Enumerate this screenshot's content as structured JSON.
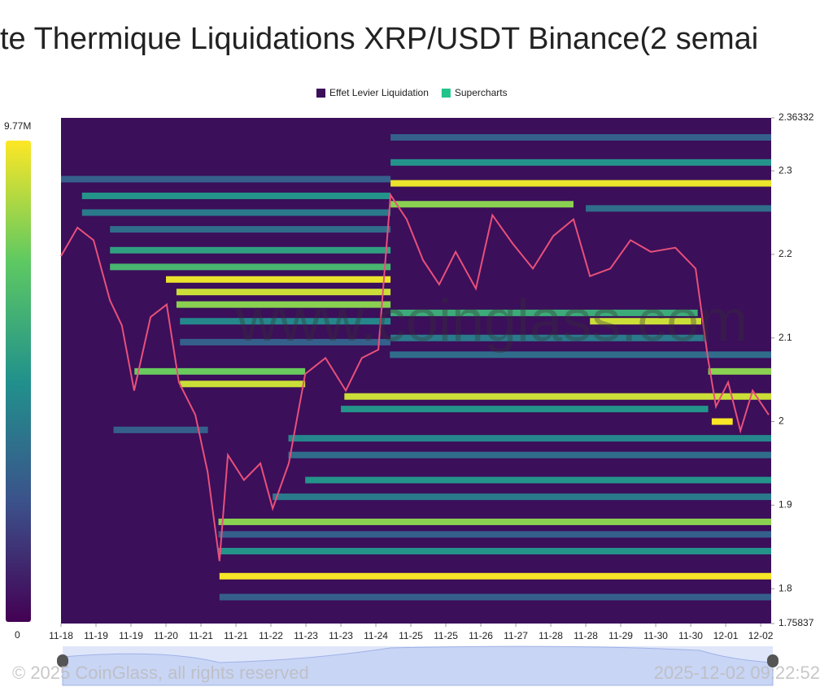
{
  "chart_data": {
    "type": "heatmap",
    "title": "te Thermique Liquidations XRP/USDT Binance(2 semai",
    "series": [
      {
        "name": "Effet Levier Liquidation",
        "color": "#3b0f5a"
      },
      {
        "name": "Supercharts",
        "color": "#21c48a"
      }
    ],
    "colorscale": {
      "min": 0,
      "max": {
        "value": 9770000,
        "label": "9.77M"
      },
      "low_color": "#440154",
      "high_color": "#fde725"
    },
    "ylim": [
      1.75837,
      2.36332
    ],
    "yticks": [
      1.75837,
      1.8,
      1.9,
      2,
      2.1,
      2.2,
      2.3,
      2.36332
    ],
    "xlim": [
      0,
      20.3
    ],
    "xticks": [
      {
        "value": 0,
        "label": "11-18"
      },
      {
        "value": 1,
        "label": "11-19"
      },
      {
        "value": 2,
        "label": "11-19"
      },
      {
        "value": 3,
        "label": "11-20"
      },
      {
        "value": 4,
        "label": "11-21"
      },
      {
        "value": 5,
        "label": "11-21"
      },
      {
        "value": 6,
        "label": "11-22"
      },
      {
        "value": 7,
        "label": "11-23"
      },
      {
        "value": 8,
        "label": "11-23"
      },
      {
        "value": 9,
        "label": "11-24"
      },
      {
        "value": 10,
        "label": "11-25"
      },
      {
        "value": 11,
        "label": "11-25"
      },
      {
        "value": 12,
        "label": "11-26"
      },
      {
        "value": 13,
        "label": "11-27"
      },
      {
        "value": 14,
        "label": "11-28"
      },
      {
        "value": 15,
        "label": "11-28"
      },
      {
        "value": 16,
        "label": "11-29"
      },
      {
        "value": 17,
        "label": "11-30"
      },
      {
        "value": 18,
        "label": "11-30"
      },
      {
        "value": 19,
        "label": "12-01"
      },
      {
        "value": 20,
        "label": "12-02"
      }
    ],
    "heatmap": [
      {
        "price": 2.29,
        "x0": 0,
        "x1": 9.42,
        "value": 3000000
      },
      {
        "price": 2.27,
        "x0": 0.6,
        "x1": 9.42,
        "value": 5000000
      },
      {
        "price": 2.25,
        "x0": 0.6,
        "x1": 9.42,
        "value": 4000000
      },
      {
        "price": 2.23,
        "x0": 1.4,
        "x1": 9.42,
        "value": 3500000
      },
      {
        "price": 2.205,
        "x0": 1.4,
        "x1": 9.42,
        "value": 5500000
      },
      {
        "price": 2.185,
        "x0": 1.4,
        "x1": 9.42,
        "value": 6500000
      },
      {
        "price": 2.17,
        "x0": 3,
        "x1": 9.42,
        "value": 9500000
      },
      {
        "price": 2.155,
        "x0": 3.3,
        "x1": 9.42,
        "value": 9000000
      },
      {
        "price": 2.14,
        "x0": 3.3,
        "x1": 9.42,
        "value": 8000000
      },
      {
        "price": 2.12,
        "x0": 3.4,
        "x1": 9.42,
        "value": 4500000
      },
      {
        "price": 2.095,
        "x0": 3.4,
        "x1": 9.42,
        "value": 3000000
      },
      {
        "price": 2.06,
        "x0": 2.1,
        "x1": 6.98,
        "value": 7500000
      },
      {
        "price": 2.045,
        "x0": 3.4,
        "x1": 6.98,
        "value": 9000000
      },
      {
        "price": 1.99,
        "x0": 1.5,
        "x1": 4.2,
        "value": 3000000
      },
      {
        "price": 2.34,
        "x0": 9.42,
        "x1": 20.3,
        "value": 3000000
      },
      {
        "price": 2.31,
        "x0": 9.42,
        "x1": 20.3,
        "value": 5000000
      },
      {
        "price": 2.285,
        "x0": 9.42,
        "x1": 20.3,
        "value": 9500000
      },
      {
        "price": 2.26,
        "x0": 9.42,
        "x1": 14.65,
        "value": 8000000
      },
      {
        "price": 2.255,
        "x0": 15,
        "x1": 20.3,
        "value": 3500000
      },
      {
        "price": 2.13,
        "x0": 9.42,
        "x1": 18.2,
        "value": 6000000
      },
      {
        "price": 2.12,
        "x0": 15.12,
        "x1": 18.3,
        "value": 9000000
      },
      {
        "price": 2.1,
        "x0": 9.42,
        "x1": 18.4,
        "value": 4000000
      },
      {
        "price": 2.08,
        "x0": 9.4,
        "x1": 20.3,
        "value": 3500000
      },
      {
        "price": 2.06,
        "x0": 18.5,
        "x1": 20.3,
        "value": 8000000
      },
      {
        "price": 2.03,
        "x0": 8.1,
        "x1": 20.3,
        "value": 9000000
      },
      {
        "price": 2.015,
        "x0": 8,
        "x1": 18.5,
        "value": 5000000
      },
      {
        "price": 2.0,
        "x0": 18.6,
        "x1": 19.2,
        "value": 9700000
      },
      {
        "price": 1.98,
        "x0": 6.5,
        "x1": 20.3,
        "value": 4500000
      },
      {
        "price": 1.96,
        "x0": 6.5,
        "x1": 20.3,
        "value": 3500000
      },
      {
        "price": 1.93,
        "x0": 6.98,
        "x1": 20.3,
        "value": 5000000
      },
      {
        "price": 1.91,
        "x0": 6.05,
        "x1": 20.3,
        "value": 4000000
      },
      {
        "price": 1.88,
        "x0": 4.5,
        "x1": 20.3,
        "value": 8000000
      },
      {
        "price": 1.865,
        "x0": 4.5,
        "x1": 20.3,
        "value": 3000000
      },
      {
        "price": 1.845,
        "x0": 4.5,
        "x1": 20.3,
        "value": 5000000
      },
      {
        "price": 1.815,
        "x0": 4.53,
        "x1": 20.3,
        "value": 9700000
      },
      {
        "price": 1.79,
        "x0": 4.53,
        "x1": 20.3,
        "value": 3000000
      }
    ],
    "price": {
      "color": "#e8507a",
      "x": [
        0,
        0.47,
        0.93,
        1.4,
        1.74,
        2.09,
        2.56,
        3.02,
        3.37,
        3.84,
        4.19,
        4.53,
        4.77,
        5.23,
        5.7,
        6.05,
        6.51,
        6.98,
        7.56,
        8.14,
        8.6,
        9.07,
        9.42,
        9.88,
        10.35,
        10.81,
        11.28,
        11.86,
        12.33,
        12.91,
        13.49,
        14.07,
        14.65,
        15.12,
        15.7,
        16.28,
        16.86,
        17.56,
        18.14,
        18.49,
        18.72,
        19.07,
        19.42,
        19.77,
        20.23
      ],
      "values": [
        2.198,
        2.232,
        2.217,
        2.145,
        2.115,
        2.037,
        2.125,
        2.14,
        2.047,
        2.008,
        1.94,
        1.833,
        1.96,
        1.93,
        1.95,
        1.896,
        1.95,
        2.057,
        2.076,
        2.037,
        2.076,
        2.086,
        2.271,
        2.242,
        2.193,
        2.164,
        2.203,
        2.159,
        2.247,
        2.213,
        2.183,
        2.222,
        2.242,
        2.174,
        2.183,
        2.217,
        2.203,
        2.208,
        2.183,
        2.076,
        2.018,
        2.047,
        1.989,
        2.037,
        2.008
      ]
    },
    "watermark": "www.coinglass.com",
    "footer_left": "© 2025 CoinGlass, all rights reserved",
    "footer_right": "2025-12-02 09:22:52"
  }
}
